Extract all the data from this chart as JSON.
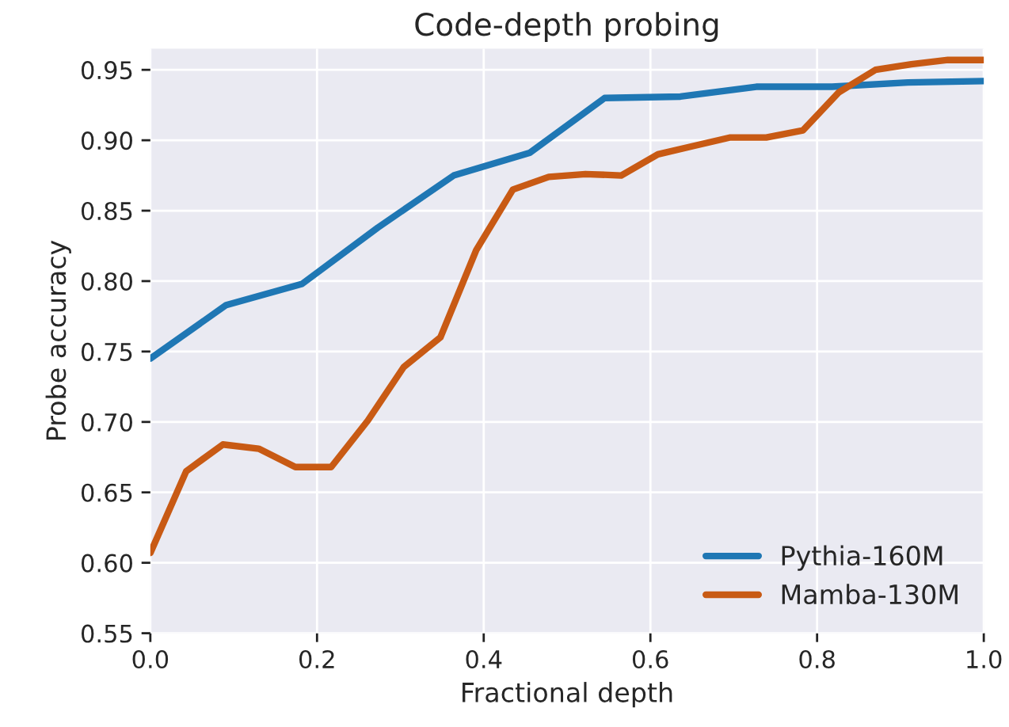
{
  "chart_data": {
    "type": "line",
    "title": "Code-depth probing",
    "xlabel": "Fractional depth",
    "ylabel": "Probe accuracy",
    "xlim": [
      0.0,
      1.0
    ],
    "xticks": [
      {
        "value": 0,
        "label": "0.0"
      },
      0.2,
      0.4,
      0.6,
      0.8,
      {
        "value": 1,
        "label": "1.0"
      }
    ],
    "ylim": [
      0.55,
      0.965
    ],
    "yticks": [
      0.55,
      {
        "value": 0.6,
        "label": "0.60"
      },
      0.65,
      {
        "value": 0.7,
        "label": "0.70"
      },
      0.75,
      {
        "value": 0.8,
        "label": "0.80"
      },
      0.85,
      {
        "value": 0.9,
        "label": "0.90"
      },
      0.95
    ],
    "grid": true,
    "legend": "bottom right",
    "marker": "none",
    "line_style": "solid",
    "series": [
      {
        "name": "Pythia-160M",
        "color": "#1f77b4",
        "x": [
          0.0,
          0.091,
          0.182,
          0.273,
          0.364,
          0.455,
          0.545,
          0.636,
          0.727,
          0.818,
          0.909,
          1.0
        ],
        "values": [
          0.745,
          0.783,
          0.798,
          0.838,
          0.875,
          0.891,
          0.93,
          0.931,
          0.938,
          0.938,
          0.941,
          0.942
        ]
      },
      {
        "name": "Mamba-130M",
        "color": "#c85a14",
        "x": [
          0.0,
          0.043,
          0.087,
          0.13,
          0.174,
          0.217,
          0.261,
          0.304,
          0.348,
          0.391,
          0.435,
          0.478,
          0.522,
          0.565,
          0.609,
          0.652,
          0.696,
          0.739,
          0.783,
          0.826,
          0.87,
          0.913,
          0.957,
          1.0
        ],
        "values": [
          0.607,
          0.665,
          0.684,
          0.681,
          0.668,
          0.668,
          0.701,
          0.739,
          0.76,
          0.822,
          0.865,
          0.874,
          0.876,
          0.875,
          0.89,
          0.896,
          0.902,
          0.902,
          0.907,
          0.934,
          0.95,
          0.954,
          0.957,
          0.957
        ]
      }
    ]
  }
}
